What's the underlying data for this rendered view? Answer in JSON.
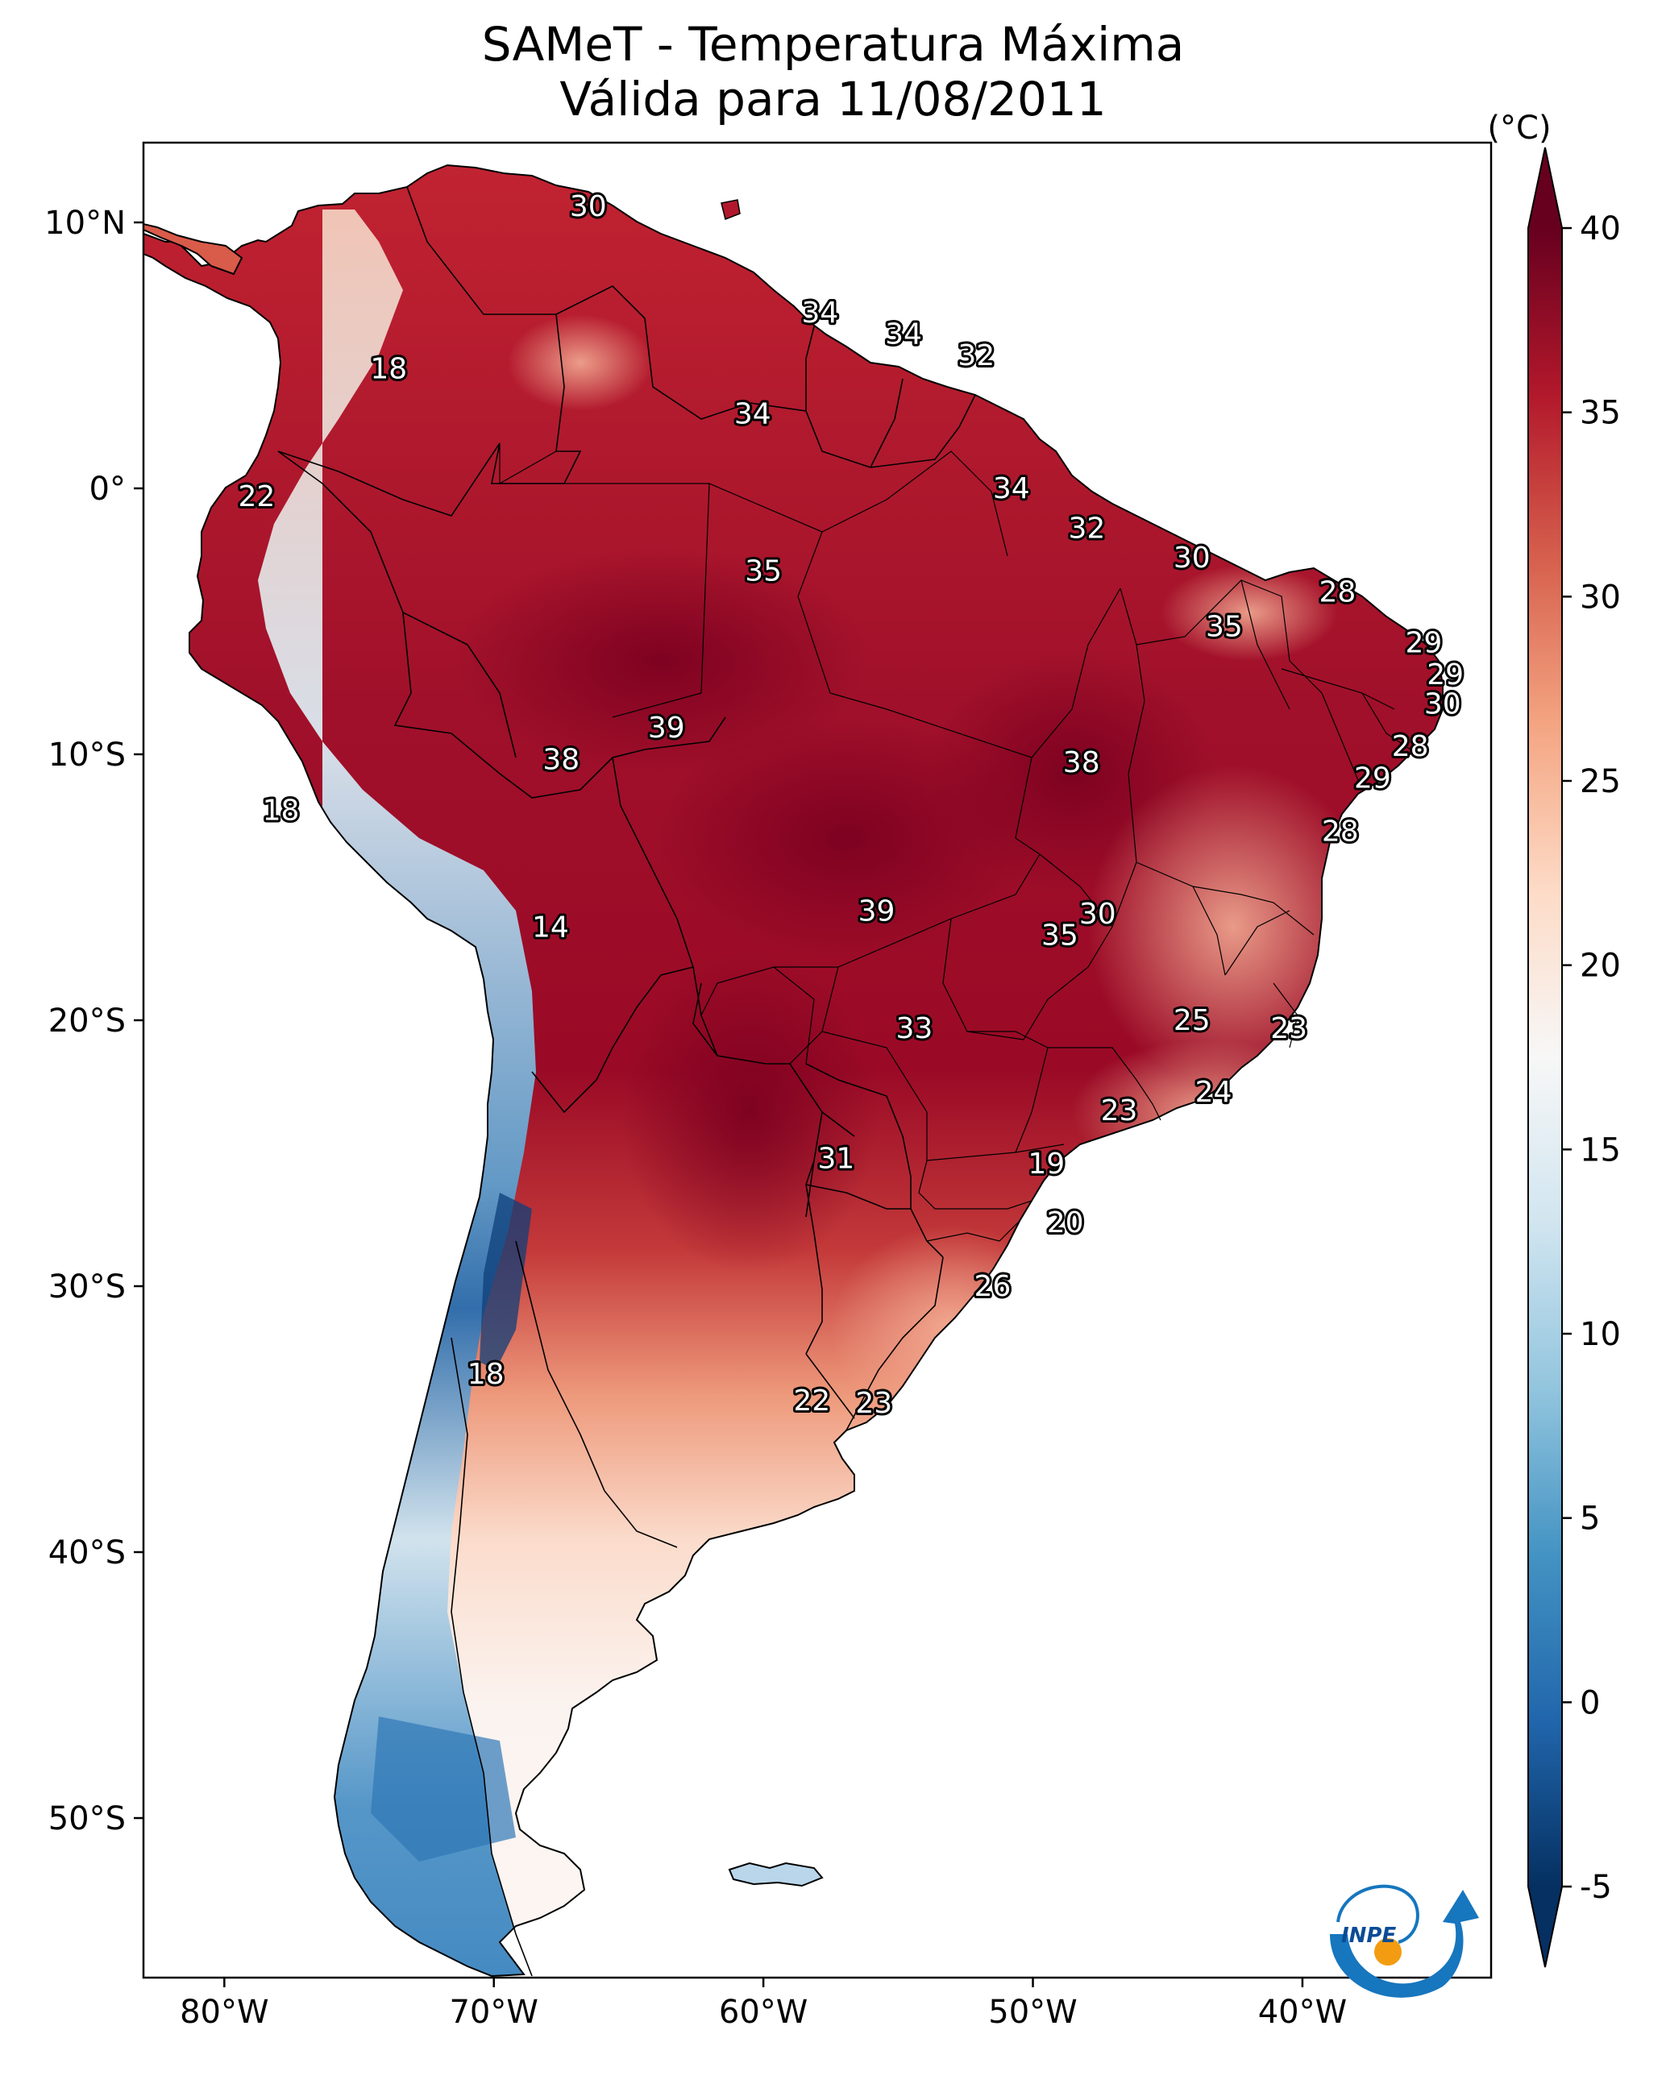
{
  "title": {
    "line1": "SAMeT - Temperatura Máxima",
    "line2": "Válida para 11/08/2011"
  },
  "axes": {
    "lat_ticks": [
      {
        "value": 10,
        "label": "10°N"
      },
      {
        "value": 0,
        "label": "0°"
      },
      {
        "value": -10,
        "label": "10°S"
      },
      {
        "value": -20,
        "label": "20°S"
      },
      {
        "value": -30,
        "label": "30°S"
      },
      {
        "value": -40,
        "label": "40°S"
      },
      {
        "value": -50,
        "label": "50°S"
      }
    ],
    "lon_ticks": [
      {
        "value": -80,
        "label": "80°W"
      },
      {
        "value": -70,
        "label": "70°W"
      },
      {
        "value": -60,
        "label": "60°W"
      },
      {
        "value": -50,
        "label": "50°W"
      },
      {
        "value": -40,
        "label": "40°W"
      }
    ],
    "lon_range": [
      -83,
      -33
    ],
    "lat_range": [
      -56,
      13
    ]
  },
  "colorbar": {
    "unit": "(°C)",
    "range": [
      -5,
      40
    ],
    "ticks": [
      {
        "value": 40,
        "label": "40"
      },
      {
        "value": 35,
        "label": "35"
      },
      {
        "value": 30,
        "label": "30"
      },
      {
        "value": 25,
        "label": "25"
      },
      {
        "value": 20,
        "label": "20"
      },
      {
        "value": 15,
        "label": "15"
      },
      {
        "value": 10,
        "label": "10"
      },
      {
        "value": 5,
        "label": "5"
      },
      {
        "value": 0,
        "label": "0"
      },
      {
        "value": -5,
        "label": "-5"
      }
    ],
    "colors": [
      "#053061",
      "#2166ac",
      "#4393c3",
      "#92c5de",
      "#d1e5f0",
      "#f7f7f7",
      "#fddbc7",
      "#f4a582",
      "#d6604d",
      "#b2182b",
      "#67001f"
    ]
  },
  "contour_labels": [
    {
      "text": "30",
      "lon": -66.5,
      "lat": 10.6
    },
    {
      "text": "34",
      "lon": -57.9,
      "lat": 6.6
    },
    {
      "text": "34",
      "lon": -54.8,
      "lat": 5.8
    },
    {
      "text": "32",
      "lon": -52.1,
      "lat": 5.0
    },
    {
      "text": "18",
      "lon": -73.9,
      "lat": 4.5
    },
    {
      "text": "34",
      "lon": -60.4,
      "lat": 2.8
    },
    {
      "text": "22",
      "lon": -78.8,
      "lat": -0.3
    },
    {
      "text": "34",
      "lon": -50.8,
      "lat": 0.0
    },
    {
      "text": "32",
      "lon": -48.0,
      "lat": -1.5
    },
    {
      "text": "30",
      "lon": -44.1,
      "lat": -2.6
    },
    {
      "text": "35",
      "lon": -60.0,
      "lat": -3.1
    },
    {
      "text": "28",
      "lon": -38.7,
      "lat": -3.9
    },
    {
      "text": "35",
      "lon": -42.9,
      "lat": -5.2
    },
    {
      "text": "29",
      "lon": -35.5,
      "lat": -5.8
    },
    {
      "text": "29",
      "lon": -34.7,
      "lat": -7.0
    },
    {
      "text": "30",
      "lon": -34.8,
      "lat": -8.1
    },
    {
      "text": "39",
      "lon": -63.6,
      "lat": -9.0
    },
    {
      "text": "28",
      "lon": -36.0,
      "lat": -9.7
    },
    {
      "text": "38",
      "lon": -67.5,
      "lat": -10.2
    },
    {
      "text": "38",
      "lon": -48.2,
      "lat": -10.3
    },
    {
      "text": "29",
      "lon": -37.4,
      "lat": -10.9
    },
    {
      "text": "18",
      "lon": -77.9,
      "lat": -12.1
    },
    {
      "text": "28",
      "lon": -38.6,
      "lat": -12.9
    },
    {
      "text": "39",
      "lon": -55.8,
      "lat": -15.9
    },
    {
      "text": "30",
      "lon": -47.6,
      "lat": -16.0
    },
    {
      "text": "14",
      "lon": -67.9,
      "lat": -16.5
    },
    {
      "text": "35",
      "lon": -49.0,
      "lat": -16.8
    },
    {
      "text": "25",
      "lon": -44.1,
      "lat": -20.0
    },
    {
      "text": "23",
      "lon": -40.5,
      "lat": -20.3
    },
    {
      "text": "33",
      "lon": -54.4,
      "lat": -20.3
    },
    {
      "text": "24",
      "lon": -43.3,
      "lat": -22.7
    },
    {
      "text": "23",
      "lon": -46.8,
      "lat": -23.4
    },
    {
      "text": "19",
      "lon": -49.5,
      "lat": -25.4
    },
    {
      "text": "31",
      "lon": -57.3,
      "lat": -25.2
    },
    {
      "text": "20",
      "lon": -48.8,
      "lat": -27.6
    },
    {
      "text": "26",
      "lon": -51.5,
      "lat": -30.0
    },
    {
      "text": "18",
      "lon": -70.3,
      "lat": -33.3
    },
    {
      "text": "22",
      "lon": -58.2,
      "lat": -34.3
    },
    {
      "text": "23",
      "lon": -55.9,
      "lat": -34.4
    }
  ],
  "logo": {
    "text": "INPE"
  }
}
